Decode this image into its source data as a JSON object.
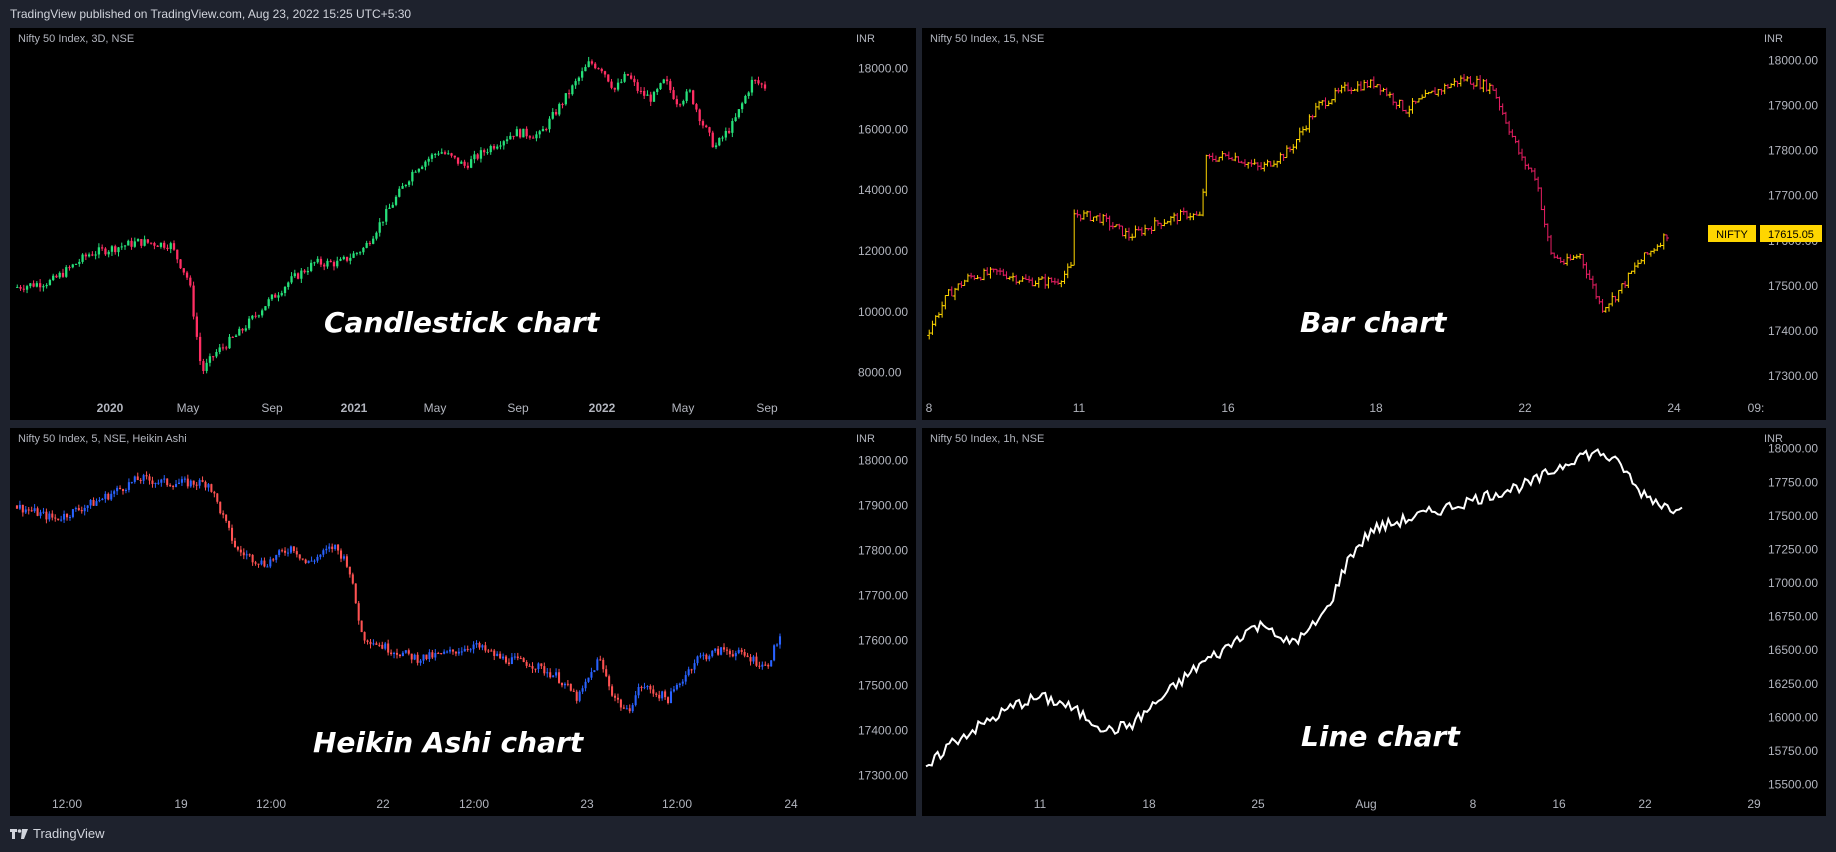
{
  "header": {
    "published": "TradingView published on TradingView.com, Aug 23, 2022 15:25 UTC+5:30"
  },
  "footer": {
    "brand": "TradingView"
  },
  "colors": {
    "background": "#1e222d",
    "panel": "#000000",
    "up_green": "#26e07a",
    "down_red": "#ff2e63",
    "bar_yellow": "#ffd600",
    "bar_red": "#e91e63",
    "ha_blue": "#2962ff",
    "ha_red": "#ff5252",
    "line_white": "#ffffff"
  },
  "panels": [
    {
      "title": "Nifty 50 Index, 3D, NSE",
      "currency": "INR",
      "label": "Candlestick chart"
    },
    {
      "title": "Nifty 50 Index, 15, NSE",
      "currency": "INR",
      "label": "Bar chart",
      "price_tag": {
        "symbol": "NIFTY",
        "value": "17615.05"
      }
    },
    {
      "title": "Nifty 50 Index, 5, NSE, Heikin Ashi",
      "currency": "INR",
      "label": "Heikin Ashi chart"
    },
    {
      "title": "Nifty 50 Index, 1h, NSE",
      "currency": "INR",
      "label": "Line chart"
    }
  ],
  "chart_data": [
    {
      "type": "candlestick",
      "ylim": [
        7000,
        19000
      ],
      "yticks": [
        "8000.00",
        "10000.00",
        "12000.00",
        "14000.00",
        "16000.00",
        "18000.00"
      ],
      "xticks": [
        {
          "label": "2020",
          "bold": true
        },
        {
          "label": "May"
        },
        {
          "label": "Sep"
        },
        {
          "label": "2021",
          "bold": true
        },
        {
          "label": "May"
        },
        {
          "label": "Sep"
        },
        {
          "label": "2022",
          "bold": true
        },
        {
          "label": "May"
        },
        {
          "label": "Sep"
        }
      ],
      "path": [
        [
          0,
          10800
        ],
        [
          6,
          11000
        ],
        [
          12,
          11900
        ],
        [
          20,
          12300
        ],
        [
          25,
          12200
        ],
        [
          28,
          11000
        ],
        [
          30,
          8000
        ],
        [
          32,
          8600
        ],
        [
          36,
          9300
        ],
        [
          40,
          10200
        ],
        [
          44,
          11000
        ],
        [
          48,
          11600
        ],
        [
          52,
          11600
        ],
        [
          56,
          12100
        ],
        [
          60,
          13400
        ],
        [
          64,
          14700
        ],
        [
          68,
          15300
        ],
        [
          72,
          14800
        ],
        [
          76,
          15400
        ],
        [
          80,
          15900
        ],
        [
          84,
          15800
        ],
        [
          88,
          17000
        ],
        [
          92,
          18200
        ],
        [
          94,
          18000
        ],
        [
          96,
          17300
        ],
        [
          98,
          17800
        ],
        [
          100,
          17200
        ],
        [
          102,
          17000
        ],
        [
          104,
          17600
        ],
        [
          106,
          16900
        ],
        [
          108,
          17200
        ],
        [
          110,
          16200
        ],
        [
          112,
          15400
        ],
        [
          115,
          16200
        ],
        [
          118,
          17600
        ],
        [
          120,
          17400
        ]
      ]
    },
    {
      "type": "bar",
      "ylim": [
        17240,
        18050
      ],
      "yticks": [
        "17300.00",
        "17400.00",
        "17500.00",
        "17600.00",
        "17700.00",
        "17800.00",
        "17900.00",
        "18000.00"
      ],
      "xticks": [
        {
          "label": "8"
        },
        {
          "label": "11"
        },
        {
          "label": "16"
        },
        {
          "label": "18"
        },
        {
          "label": "22"
        },
        {
          "label": "24"
        },
        {
          "label": "09:"
        }
      ],
      "path": [
        [
          0,
          17390
        ],
        [
          3,
          17480
        ],
        [
          6,
          17520
        ],
        [
          10,
          17530
        ],
        [
          14,
          17510
        ],
        [
          18,
          17510
        ],
        [
          20,
          17540
        ],
        [
          20.3,
          17660
        ],
        [
          24,
          17650
        ],
        [
          28,
          17610
        ],
        [
          32,
          17640
        ],
        [
          36,
          17660
        ],
        [
          38,
          17650
        ],
        [
          38.3,
          17780
        ],
        [
          42,
          17790
        ],
        [
          46,
          17760
        ],
        [
          50,
          17800
        ],
        [
          54,
          17900
        ],
        [
          58,
          17940
        ],
        [
          62,
          17950
        ],
        [
          66,
          17890
        ],
        [
          70,
          17930
        ],
        [
          74,
          17960
        ],
        [
          78,
          17940
        ],
        [
          80,
          17860
        ],
        [
          82,
          17780
        ],
        [
          84,
          17740
        ],
        [
          85,
          17650
        ],
        [
          86,
          17570
        ],
        [
          88,
          17550
        ],
        [
          90,
          17570
        ],
        [
          93,
          17450
        ],
        [
          95,
          17480
        ],
        [
          98,
          17550
        ],
        [
          100,
          17580
        ],
        [
          102,
          17615
        ]
      ]
    },
    {
      "type": "heikin_ashi",
      "ylim": [
        17250,
        18050
      ],
      "yticks": [
        "17300.00",
        "17400.00",
        "17500.00",
        "17600.00",
        "17700.00",
        "17800.00",
        "17900.00",
        "18000.00"
      ],
      "xticks": [
        {
          "label": "12:00"
        },
        {
          "label": "19"
        },
        {
          "label": "12:00"
        },
        {
          "label": "22"
        },
        {
          "label": "12:00"
        },
        {
          "label": "23"
        },
        {
          "label": "12:00"
        },
        {
          "label": "24"
        }
      ],
      "path": [
        [
          0,
          17900
        ],
        [
          6,
          17870
        ],
        [
          12,
          17910
        ],
        [
          18,
          17960
        ],
        [
          22,
          17950
        ],
        [
          28,
          17950
        ],
        [
          32,
          17800
        ],
        [
          36,
          17770
        ],
        [
          40,
          17810
        ],
        [
          42,
          17770
        ],
        [
          46,
          17810
        ],
        [
          48,
          17770
        ],
        [
          50,
          17610
        ],
        [
          54,
          17580
        ],
        [
          58,
          17560
        ],
        [
          62,
          17570
        ],
        [
          66,
          17590
        ],
        [
          70,
          17560
        ],
        [
          74,
          17550
        ],
        [
          78,
          17520
        ],
        [
          81,
          17470
        ],
        [
          84,
          17560
        ],
        [
          86,
          17480
        ],
        [
          88,
          17440
        ],
        [
          90,
          17500
        ],
        [
          94,
          17470
        ],
        [
          98,
          17560
        ],
        [
          102,
          17580
        ],
        [
          106,
          17560
        ],
        [
          108,
          17540
        ],
        [
          110,
          17610
        ]
      ]
    },
    {
      "type": "line",
      "ylim": [
        15400,
        18080
      ],
      "yticks": [
        "15500.00",
        "15750.00",
        "16000.00",
        "16250.00",
        "16500.00",
        "16750.00",
        "17000.00",
        "17250.00",
        "17500.00",
        "17750.00",
        "18000.00"
      ],
      "xticks": [
        {
          "label": "11"
        },
        {
          "label": "18"
        },
        {
          "label": "25"
        },
        {
          "label": "Aug"
        },
        {
          "label": "8"
        },
        {
          "label": "16"
        },
        {
          "label": "22"
        },
        {
          "label": "29"
        }
      ],
      "path": [
        [
          0,
          15600
        ],
        [
          4,
          15800
        ],
        [
          8,
          15900
        ],
        [
          12,
          16000
        ],
        [
          16,
          16100
        ],
        [
          20,
          16150
        ],
        [
          24,
          16100
        ],
        [
          28,
          16000
        ],
        [
          32,
          15900
        ],
        [
          36,
          15950
        ],
        [
          40,
          16100
        ],
        [
          44,
          16250
        ],
        [
          48,
          16400
        ],
        [
          52,
          16500
        ],
        [
          56,
          16650
        ],
        [
          60,
          16700
        ],
        [
          62,
          16550
        ],
        [
          66,
          16600
        ],
        [
          70,
          16800
        ],
        [
          74,
          17200
        ],
        [
          78,
          17400
        ],
        [
          82,
          17450
        ],
        [
          86,
          17500
        ],
        [
          90,
          17550
        ],
        [
          94,
          17600
        ],
        [
          98,
          17650
        ],
        [
          102,
          17700
        ],
        [
          106,
          17750
        ],
        [
          110,
          17850
        ],
        [
          114,
          17950
        ],
        [
          118,
          17970
        ],
        [
          122,
          17850
        ],
        [
          124,
          17700
        ],
        [
          128,
          17600
        ],
        [
          130,
          17550
        ],
        [
          132,
          17600
        ]
      ]
    }
  ]
}
